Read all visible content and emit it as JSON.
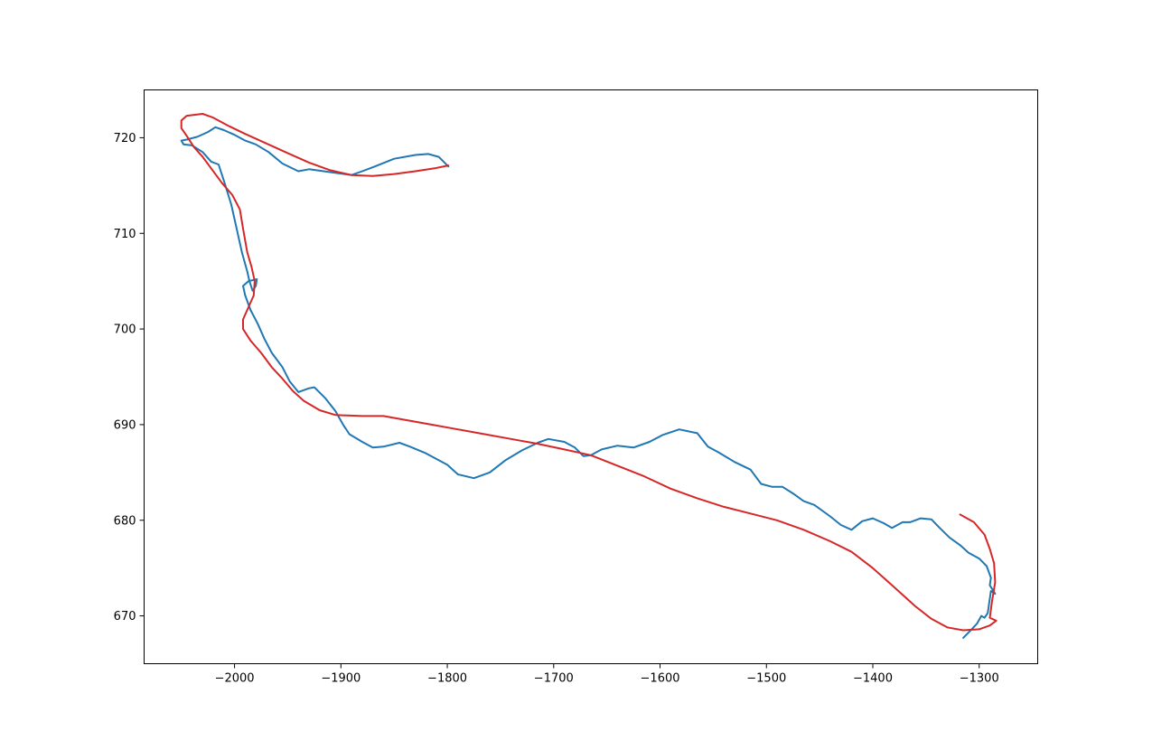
{
  "chart_data": {
    "type": "line",
    "title": "",
    "xlabel": "",
    "ylabel": "",
    "xlim": [
      -2085,
      -1245
    ],
    "ylim": [
      665,
      725
    ],
    "xticks": [
      -2000,
      -1900,
      -1800,
      -1700,
      -1600,
      -1500,
      -1400,
      -1300
    ],
    "yticks": [
      670,
      680,
      690,
      700,
      710,
      720
    ],
    "grid": false,
    "legend": "none",
    "series": [
      {
        "color": "#1f77b4",
        "points": [
          [
            -1799,
            717.0
          ],
          [
            -1808,
            718.0
          ],
          [
            -1818,
            718.3
          ],
          [
            -1830,
            718.2
          ],
          [
            -1850,
            717.8
          ],
          [
            -1868,
            717.0
          ],
          [
            -1880,
            716.5
          ],
          [
            -1890,
            716.1
          ],
          [
            -1910,
            716.4
          ],
          [
            -1930,
            716.7
          ],
          [
            -1940,
            716.5
          ],
          [
            -1955,
            717.3
          ],
          [
            -1968,
            718.5
          ],
          [
            -1980,
            719.3
          ],
          [
            -1990,
            719.7
          ],
          [
            -2000,
            720.3
          ],
          [
            -2010,
            720.8
          ],
          [
            -2018,
            721.1
          ],
          [
            -2025,
            720.6
          ],
          [
            -2035,
            720.1
          ],
          [
            -2045,
            719.8
          ],
          [
            -2050,
            719.7
          ],
          [
            -2048,
            719.3
          ],
          [
            -2040,
            719.2
          ],
          [
            -2030,
            718.5
          ],
          [
            -2022,
            717.5
          ],
          [
            -2015,
            717.2
          ],
          [
            -2010,
            715.5
          ],
          [
            -2003,
            713.0
          ],
          [
            -1998,
            710.5
          ],
          [
            -1993,
            708.0
          ],
          [
            -1988,
            706.0
          ],
          [
            -1986,
            705.0
          ],
          [
            -1983,
            704.0
          ],
          [
            -1980,
            704.5
          ],
          [
            -1979,
            705.2
          ],
          [
            -1987,
            705.0
          ],
          [
            -1992,
            704.5
          ],
          [
            -1990,
            703.5
          ],
          [
            -1985,
            702.0
          ],
          [
            -1978,
            700.5
          ],
          [
            -1972,
            699.0
          ],
          [
            -1965,
            697.5
          ],
          [
            -1955,
            696.0
          ],
          [
            -1948,
            694.5
          ],
          [
            -1940,
            693.4
          ],
          [
            -1930,
            693.8
          ],
          [
            -1925,
            693.9
          ],
          [
            -1915,
            692.8
          ],
          [
            -1905,
            691.4
          ],
          [
            -1898,
            690.0
          ],
          [
            -1892,
            689.0
          ],
          [
            -1880,
            688.2
          ],
          [
            -1870,
            687.6
          ],
          [
            -1860,
            687.7
          ],
          [
            -1845,
            688.1
          ],
          [
            -1835,
            687.7
          ],
          [
            -1820,
            687.0
          ],
          [
            -1800,
            685.8
          ],
          [
            -1790,
            684.8
          ],
          [
            -1775,
            684.4
          ],
          [
            -1760,
            685.0
          ],
          [
            -1745,
            686.3
          ],
          [
            -1730,
            687.3
          ],
          [
            -1715,
            688.1
          ],
          [
            -1705,
            688.5
          ],
          [
            -1690,
            688.2
          ],
          [
            -1680,
            687.6
          ],
          [
            -1672,
            686.7
          ],
          [
            -1665,
            686.8
          ],
          [
            -1655,
            687.4
          ],
          [
            -1640,
            687.8
          ],
          [
            -1625,
            687.6
          ],
          [
            -1610,
            688.2
          ],
          [
            -1598,
            688.9
          ],
          [
            -1582,
            689.5
          ],
          [
            -1565,
            689.1
          ],
          [
            -1555,
            687.7
          ],
          [
            -1545,
            687.1
          ],
          [
            -1530,
            686.1
          ],
          [
            -1515,
            685.3
          ],
          [
            -1505,
            683.8
          ],
          [
            -1495,
            683.5
          ],
          [
            -1485,
            683.5
          ],
          [
            -1475,
            682.8
          ],
          [
            -1465,
            682.0
          ],
          [
            -1455,
            681.6
          ],
          [
            -1440,
            680.4
          ],
          [
            -1430,
            679.5
          ],
          [
            -1420,
            679.0
          ],
          [
            -1410,
            679.9
          ],
          [
            -1400,
            680.2
          ],
          [
            -1390,
            679.7
          ],
          [
            -1382,
            679.2
          ],
          [
            -1372,
            679.8
          ],
          [
            -1365,
            679.8
          ],
          [
            -1355,
            680.2
          ],
          [
            -1345,
            680.1
          ],
          [
            -1338,
            679.3
          ],
          [
            -1328,
            678.2
          ],
          [
            -1318,
            677.4
          ],
          [
            -1310,
            676.6
          ],
          [
            -1300,
            676.0
          ],
          [
            -1293,
            675.2
          ],
          [
            -1289,
            674.0
          ],
          [
            -1290,
            673.2
          ],
          [
            -1285,
            672.3
          ],
          [
            -1289,
            672.6
          ],
          [
            -1292,
            670.3
          ],
          [
            -1295,
            669.8
          ],
          [
            -1298,
            670.0
          ],
          [
            -1302,
            669.2
          ],
          [
            -1308,
            668.5
          ],
          [
            -1315,
            667.7
          ]
        ]
      },
      {
        "color": "#d62728",
        "points": [
          [
            -1799,
            717.1
          ],
          [
            -1812,
            716.8
          ],
          [
            -1830,
            716.5
          ],
          [
            -1850,
            716.2
          ],
          [
            -1870,
            716.0
          ],
          [
            -1890,
            716.1
          ],
          [
            -1910,
            716.6
          ],
          [
            -1930,
            717.4
          ],
          [
            -1950,
            718.4
          ],
          [
            -1970,
            719.4
          ],
          [
            -1990,
            720.4
          ],
          [
            -2005,
            721.2
          ],
          [
            -2020,
            722.1
          ],
          [
            -2030,
            722.5
          ],
          [
            -2045,
            722.3
          ],
          [
            -2050,
            721.8
          ],
          [
            -2050,
            721.0
          ],
          [
            -2045,
            720.2
          ],
          [
            -2038,
            719.0
          ],
          [
            -2030,
            718.0
          ],
          [
            -2022,
            716.8
          ],
          [
            -2012,
            715.3
          ],
          [
            -2002,
            714.0
          ],
          [
            -1995,
            712.5
          ],
          [
            -1992,
            710.5
          ],
          [
            -1988,
            708.0
          ],
          [
            -1984,
            706.5
          ],
          [
            -1981,
            705.0
          ],
          [
            -1982,
            703.5
          ],
          [
            -1988,
            702.0
          ],
          [
            -1992,
            701.0
          ],
          [
            -1992,
            700.0
          ],
          [
            -1985,
            698.8
          ],
          [
            -1975,
            697.5
          ],
          [
            -1965,
            696.0
          ],
          [
            -1955,
            694.8
          ],
          [
            -1945,
            693.5
          ],
          [
            -1935,
            692.5
          ],
          [
            -1920,
            691.5
          ],
          [
            -1905,
            691.0
          ],
          [
            -1880,
            690.9
          ],
          [
            -1860,
            690.9
          ],
          [
            -1840,
            690.5
          ],
          [
            -1815,
            690.0
          ],
          [
            -1790,
            689.5
          ],
          [
            -1765,
            689.0
          ],
          [
            -1740,
            688.5
          ],
          [
            -1715,
            688.0
          ],
          [
            -1690,
            687.4
          ],
          [
            -1665,
            686.8
          ],
          [
            -1640,
            685.7
          ],
          [
            -1615,
            684.6
          ],
          [
            -1590,
            683.3
          ],
          [
            -1565,
            682.3
          ],
          [
            -1540,
            681.4
          ],
          [
            -1515,
            680.7
          ],
          [
            -1490,
            680.0
          ],
          [
            -1465,
            679.0
          ],
          [
            -1440,
            677.8
          ],
          [
            -1420,
            676.7
          ],
          [
            -1400,
            675.0
          ],
          [
            -1380,
            673.0
          ],
          [
            -1360,
            671.0
          ],
          [
            -1345,
            669.7
          ],
          [
            -1330,
            668.8
          ],
          [
            -1315,
            668.5
          ],
          [
            -1300,
            668.6
          ],
          [
            -1290,
            669.0
          ],
          [
            -1284,
            669.5
          ],
          [
            -1290,
            669.8
          ],
          [
            -1288,
            671.5
          ],
          [
            -1285,
            673.5
          ],
          [
            -1286,
            675.5
          ],
          [
            -1290,
            677.0
          ],
          [
            -1295,
            678.5
          ],
          [
            -1305,
            679.8
          ],
          [
            -1318,
            680.6
          ]
        ]
      }
    ]
  }
}
